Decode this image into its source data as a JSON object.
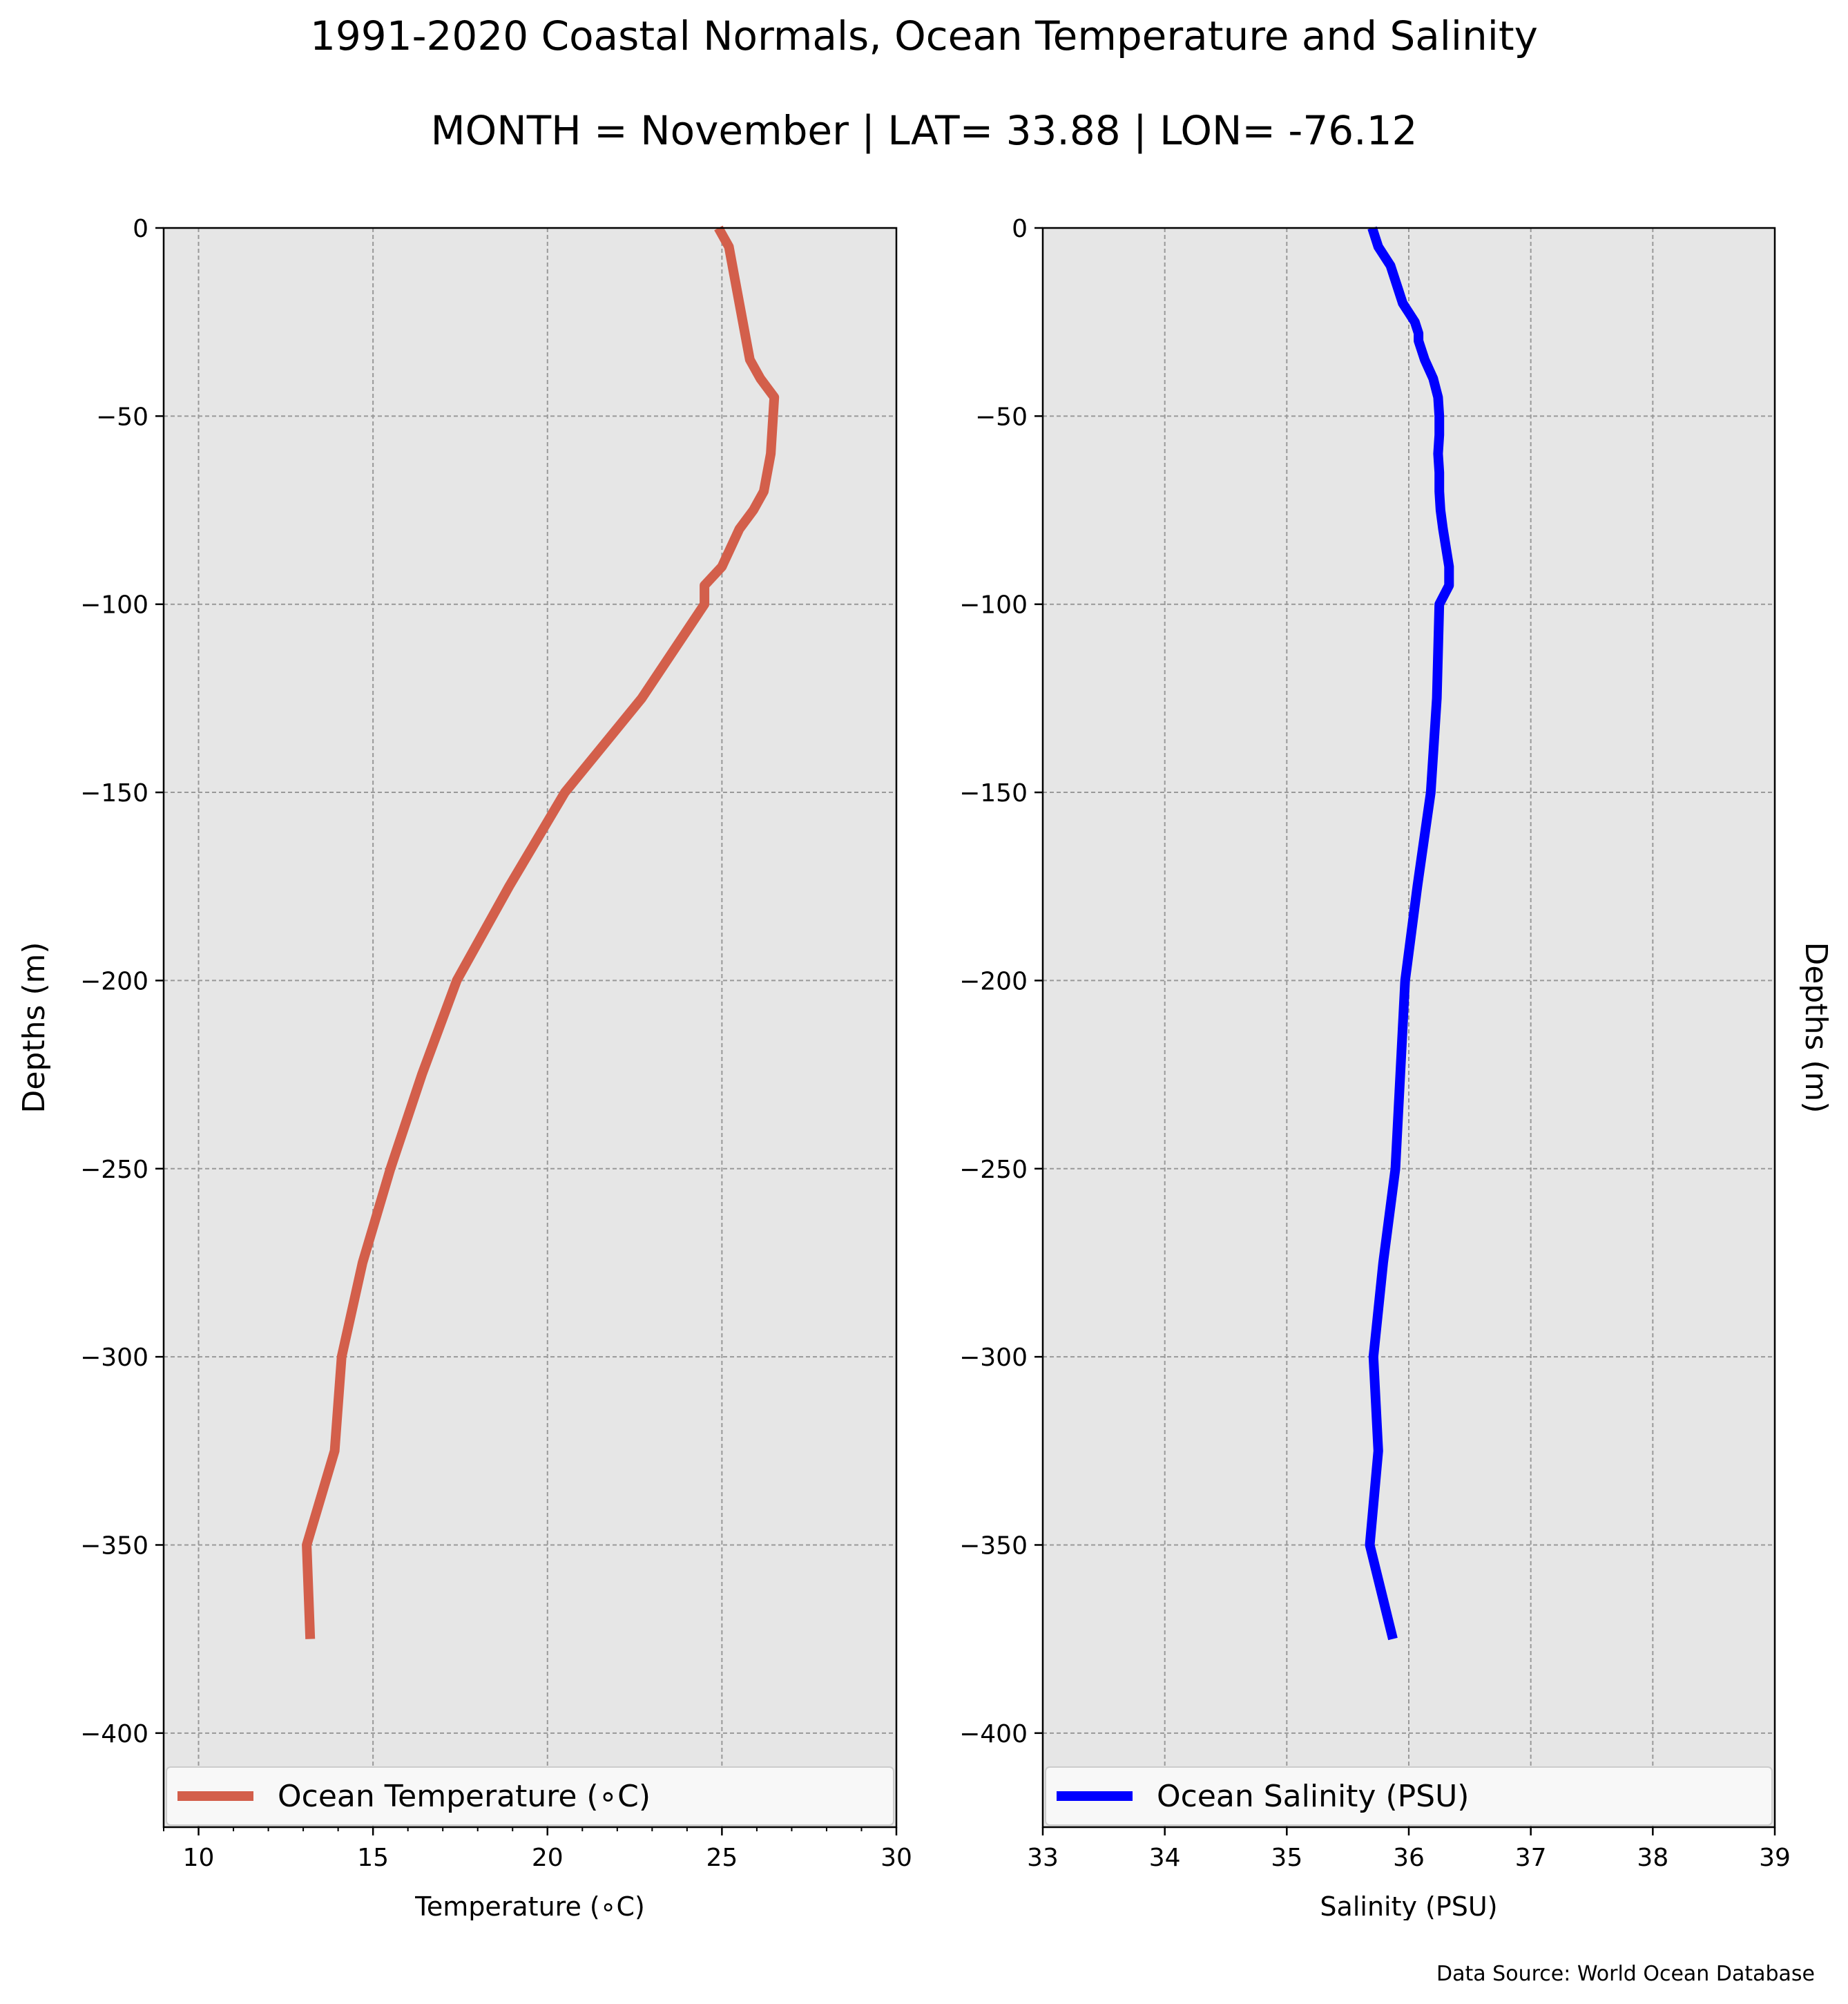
{
  "figure": {
    "title": "1991-2020 Coastal Normals, Ocean Temperature and Salinity",
    "subtitle": "MONTH = November | LAT= 33.88 | LON= -76.12",
    "source": "Data Source: World Ocean Database",
    "colors": {
      "temperature": "#d35f4b",
      "salinity": "#0000ff",
      "axes_bg": "#e6e6e6",
      "grid": "#999999"
    }
  },
  "chart_data": [
    {
      "type": "line",
      "xlabel": "Temperature (∘C)",
      "ylabel": "Depths (m)",
      "xlim": [
        9,
        30
      ],
      "ylim": [
        -425,
        0
      ],
      "xticks": [
        10,
        15,
        20,
        25,
        30
      ],
      "yticks": [
        0,
        -50,
        -100,
        -150,
        -200,
        -250,
        -300,
        -350,
        -400
      ],
      "grid": true,
      "legend_location": "lower",
      "series": [
        {
          "name": "Ocean Temperature (∘C)",
          "color": "#d35f4b",
          "x": [
            24.9,
            25.2,
            25.5,
            25.7,
            25.8,
            26.1,
            26.5,
            26.4,
            26.2,
            25.9,
            25.5,
            25.0,
            24.5,
            24.5,
            22.7,
            20.5,
            18.9,
            17.4,
            16.4,
            15.5,
            14.7,
            14.1,
            13.9,
            13.1,
            13.2
          ],
          "y": [
            0,
            -5,
            -20,
            -30,
            -35,
            -40,
            -45,
            -60,
            -70,
            -75,
            -80,
            -90,
            -95,
            -100,
            -125,
            -150,
            -175,
            -200,
            -225,
            -250,
            -275,
            -300,
            -325,
            -350,
            -375
          ]
        }
      ]
    },
    {
      "type": "line",
      "xlabel": "Salinity (PSU)",
      "ylabel": "Depths (m)",
      "xlim": [
        33,
        39
      ],
      "ylim": [
        -425,
        0
      ],
      "xticks": [
        33,
        34,
        35,
        36,
        37,
        38,
        39
      ],
      "yticks": [
        0,
        -50,
        -100,
        -150,
        -200,
        -250,
        -300,
        -350,
        -400
      ],
      "grid": true,
      "legend_location": "lower",
      "series": [
        {
          "name": "Ocean Salinity (PSU)",
          "color": "#0000ff",
          "x": [
            35.7,
            35.75,
            35.85,
            35.95,
            36.05,
            36.08,
            36.08,
            36.13,
            36.2,
            36.24,
            36.25,
            36.25,
            36.24,
            36.25,
            36.25,
            36.26,
            36.28,
            36.33,
            36.33,
            36.25,
            36.23,
            36.18,
            36.07,
            35.97,
            35.89,
            35.79,
            35.71,
            35.75,
            35.68,
            35.87
          ],
          "y": [
            0,
            -5,
            -10,
            -20,
            -25,
            -28,
            -30,
            -35,
            -40,
            -45,
            -50,
            -55,
            -60,
            -65,
            -70,
            -75,
            -80,
            -90,
            -95,
            -100,
            -125,
            -150,
            -175,
            -200,
            -250,
            -275,
            -300,
            -325,
            -350,
            -375
          ]
        }
      ]
    }
  ]
}
